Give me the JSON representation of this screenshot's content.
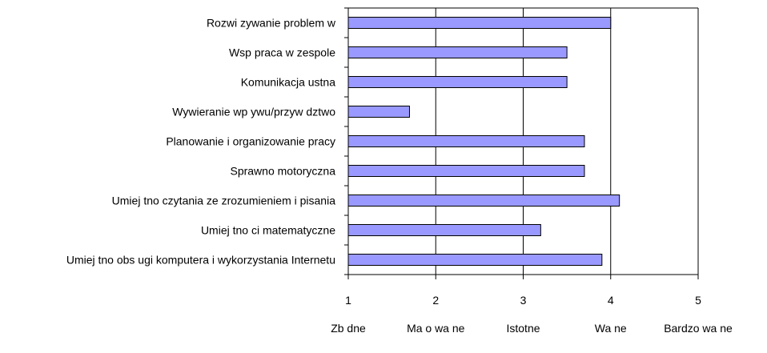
{
  "chart_data": {
    "type": "bar",
    "orientation": "horizontal",
    "categories": [
      "Rozwi zywanie problem w",
      "Wsp praca w zespole",
      "Komunikacja ustna",
      "Wywieranie wp ywu/przyw dztwo",
      "Planowanie i organizowanie pracy",
      "Sprawno motoryczna",
      "Umiej tno czytania ze zrozumieniem i pisania",
      "Umiej tno ci matematyczne",
      "Umiej tno obs ugi komputera i wykorzystania Internetu"
    ],
    "values": [
      4.0,
      3.5,
      3.5,
      1.7,
      3.7,
      3.7,
      4.1,
      3.2,
      3.9
    ],
    "xlim": [
      1,
      5
    ],
    "xticks": [
      "1",
      "2",
      "3",
      "4",
      "5"
    ],
    "scale_labels": [
      "Zb dne",
      "Ma o wa ne",
      "Istotne",
      "Wa ne",
      "Bardzo wa ne"
    ],
    "title": "",
    "xlabel": "",
    "ylabel": "",
    "grid": true,
    "bar_color": "#9999ff",
    "bar_edge_color": "#000000"
  }
}
